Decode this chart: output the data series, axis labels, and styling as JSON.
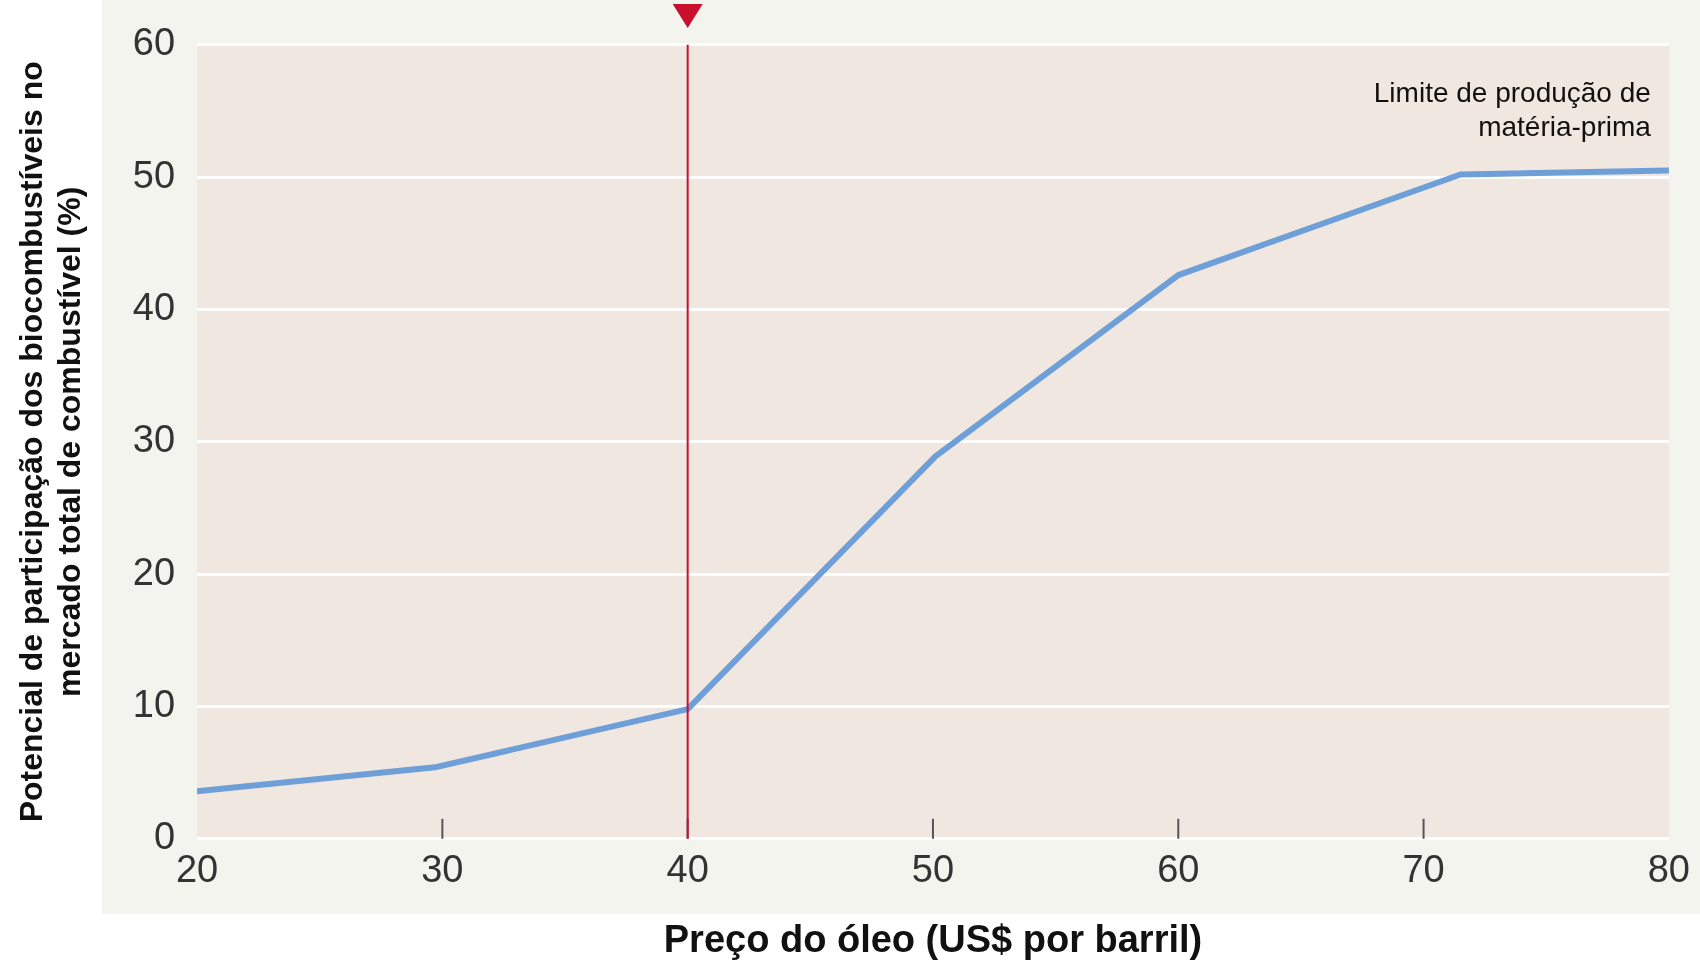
{
  "chart_data": {
    "type": "line",
    "xlabel": "Preço do óleo (US$ por barril)",
    "ylabel": "Potencial de participação dos biocombustíveis no mercado total de combustível (%)",
    "xlim": [
      20,
      80
    ],
    "xticks": [
      20,
      30,
      40,
      50,
      60,
      70,
      80
    ],
    "ylim": [
      0,
      60
    ],
    "yticks": [
      0,
      10,
      20,
      30,
      40,
      50,
      60
    ],
    "grid": "y",
    "legend": false,
    "marker": "none",
    "line_style": "solid",
    "series": [
      {
        "color": "#6f9fd8",
        "x": [
          20,
          29.7,
          40,
          50.1,
          60,
          71.5,
          80
        ],
        "values": [
          3.6,
          5.4,
          9.8,
          28.9,
          42.6,
          50.2,
          50.5
        ]
      }
    ],
    "ref_lines": [
      {
        "axis": "x",
        "value": 40,
        "color": "#c8102e"
      }
    ],
    "annotations": [
      "Limite de produção de matéria-prima"
    ]
  }
}
